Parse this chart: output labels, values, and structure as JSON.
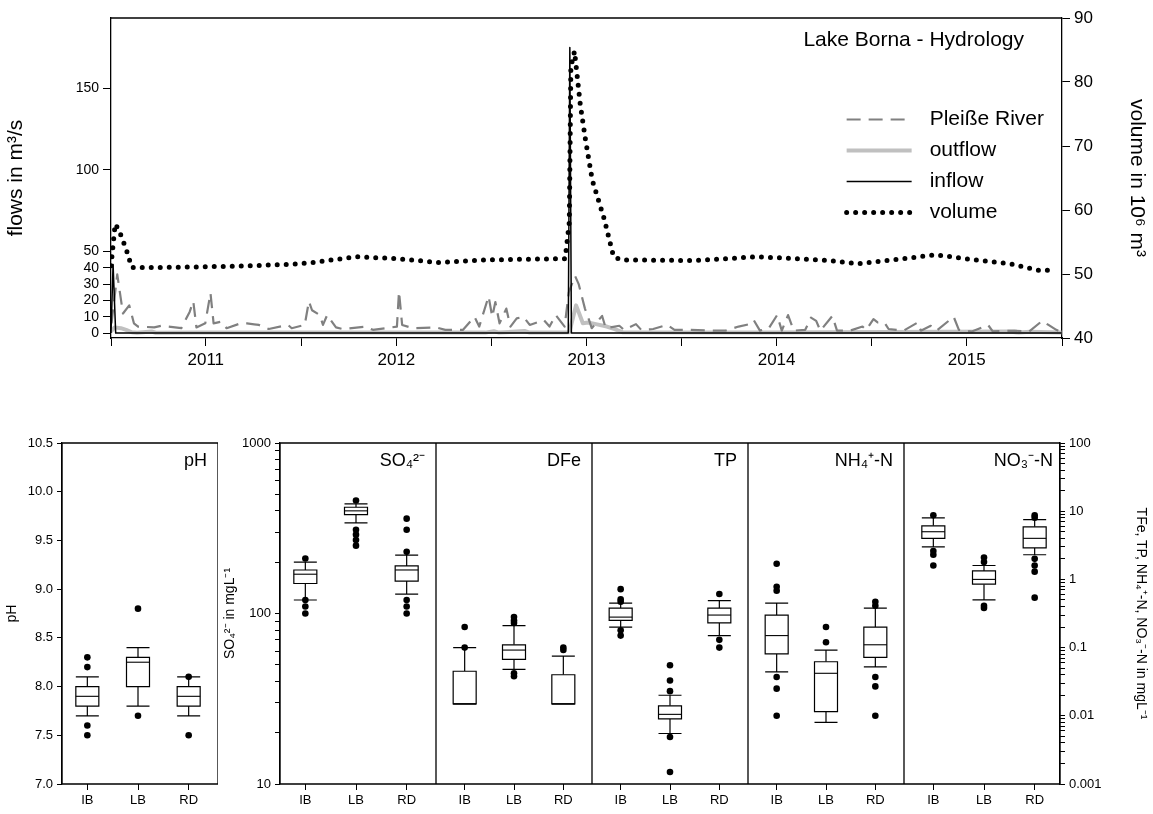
{
  "chart_data": [
    {
      "type": "line",
      "title": "Lake Borna - Hydrology",
      "ylabel": "flows in m³/s",
      "y2label": "volume in 10⁶ m³",
      "legend": "right",
      "marker": "none",
      "xlim": [
        "2011-01-01",
        "2016-01-01"
      ],
      "xticks": [
        {
          "value": "2011-01-01",
          "label": null
        },
        {
          "value": "2011-07-02",
          "label": "2011"
        },
        {
          "value": "2012-01-01",
          "label": null
        },
        {
          "value": "2012-07-02",
          "label": "2012"
        },
        {
          "value": "2013-01-01",
          "label": null
        },
        {
          "value": "2013-07-02",
          "label": "2013"
        },
        {
          "value": "2014-01-01",
          "label": null
        },
        {
          "value": "2014-07-02",
          "label": "2014"
        },
        {
          "value": "2015-01-01",
          "label": null
        },
        {
          "value": "2015-07-02",
          "label": "2015"
        },
        {
          "value": "2016-01-01",
          "label": null
        }
      ],
      "ylim": [
        -3,
        193
      ],
      "yticks": [
        0,
        10,
        20,
        30,
        40,
        50,
        100,
        150
      ],
      "y2lim": [
        40,
        90
      ],
      "y2ticks": [
        40,
        50,
        60,
        70,
        80,
        90
      ],
      "series": [
        {
          "name": "Pleiße River",
          "color": "#808080",
          "line_style": "dashed",
          "x": [
            "2011-01-02",
            "2011-01-13",
            "2011-01-24",
            "2011-02-05",
            "2011-02-14",
            "2011-02-22",
            "2011-03-25",
            "2011-04-08",
            "2011-05-16",
            "2011-06-01",
            "2011-06-08",
            "2011-06-14",
            "2011-07-01",
            "2011-07-11",
            "2011-07-17",
            "2011-08-01",
            "2011-08-11",
            "2011-09-07",
            "2011-09-19",
            "2011-10-12",
            "2011-10-31",
            "2011-12-07",
            "2011-12-14",
            "2012-01-08",
            "2012-01-16",
            "2012-01-22",
            "2012-02-06",
            "2012-02-12",
            "2012-02-20",
            "2012-03-08",
            "2012-03-21",
            "2012-05-04",
            "2012-05-18",
            "2012-06-12",
            "2012-07-03",
            "2012-07-07",
            "2012-07-13",
            "2012-08-03",
            "2012-09-16",
            "2012-10-04",
            "2012-11-07",
            "2012-11-29",
            "2012-12-08",
            "2012-12-26",
            "2013-01-02",
            "2013-01-08",
            "2013-01-16",
            "2013-01-29",
            "2013-02-06",
            "2013-02-18",
            "2013-03-03",
            "2013-03-15",
            "2013-04-11",
            "2013-04-22",
            "2013-05-04",
            "2013-05-21",
            "2013-05-29",
            "2013-06-10",
            "2013-06-17",
            "2013-06-25",
            "2013-06-29",
            "2013-07-07",
            "2013-07-12",
            "2013-08-01",
            "2013-08-08",
            "2013-09-03",
            "2013-09-12",
            "2013-10-05",
            "2013-10-15",
            "2013-11-07",
            "2013-12-04",
            "2013-12-18",
            "2014-01-12",
            "2014-03-03",
            "2014-03-26",
            "2014-04-20",
            "2014-05-11",
            "2014-05-19",
            "2014-05-31",
            "2014-06-17",
            "2014-07-03",
            "2014-07-12",
            "2014-07-24",
            "2014-08-04",
            "2014-08-26",
            "2014-09-06",
            "2014-09-16",
            "2014-09-24",
            "2014-10-17",
            "2014-10-26",
            "2014-11-20",
            "2014-12-14",
            "2014-12-21",
            "2015-01-04",
            "2015-01-12",
            "2015-01-25",
            "2015-02-02",
            "2015-02-17",
            "2015-03-03",
            "2015-03-30",
            "2015-04-05",
            "2015-04-24",
            "2015-05-05",
            "2015-06-07",
            "2015-06-17",
            "2015-07-12",
            "2015-08-12",
            "2015-08-21",
            "2015-10-01",
            "2015-10-30",
            "2015-11-24",
            "2015-12-06",
            "2015-12-21",
            "2015-12-25"
          ],
          "values": [
            6,
            36,
            12,
            17,
            6,
            4,
            3.5,
            4.5,
            3,
            13,
            19.5,
            3.5,
            6,
            24.5,
            6,
            7,
            3,
            6,
            6,
            5,
            2.5,
            5,
            3,
            5,
            19.5,
            14,
            11,
            5,
            11,
            3.5,
            2.5,
            4,
            2,
            3,
            4,
            25.5,
            5,
            3,
            3.5,
            2,
            2,
            10,
            4,
            22.5,
            10,
            19,
            6,
            15,
            4,
            9,
            10,
            5,
            8,
            4,
            11,
            4,
            25,
            35,
            30,
            20,
            15,
            8,
            3,
            10.5,
            3,
            4.5,
            2,
            5.5,
            2,
            2.5,
            5,
            2,
            2,
            1.5,
            1.5,
            4,
            5.5,
            8,
            1.5,
            3,
            11,
            1.5,
            11,
            1.5,
            2,
            9.5,
            7.5,
            1.5,
            10.5,
            1.5,
            1.5,
            4,
            2,
            8.5,
            6.5,
            6.5,
            2.5,
            2,
            1.5,
            6.5,
            1.5,
            4.5,
            1.5,
            10,
            2,
            1,
            5,
            1,
            1.5,
            1,
            7.5,
            5,
            2,
            1.5
          ]
        },
        {
          "name": "outflow",
          "color": "#c0c0c0",
          "line_style": "solid",
          "x": [
            "2011-01-01",
            "2011-01-08",
            "2011-01-20",
            "2011-01-30",
            "2011-02-10",
            "2011-02-20",
            "2011-03-20",
            "2011-03-28",
            "2011-06-15",
            "2012-03-01",
            "2012-12-20",
            "2013-01-05",
            "2013-01-15",
            "2013-03-05",
            "2013-03-15",
            "2013-05-30",
            "2013-06-05",
            "2013-06-12",
            "2013-06-18",
            "2013-06-25",
            "2013-07-05",
            "2013-07-20",
            "2013-08-10",
            "2013-08-25",
            "2013-09-10",
            "2014-06-01",
            "2015-09-20",
            "2015-10-10",
            "2015-11-01",
            "2015-12-31"
          ],
          "values": [
            1,
            3.5,
            3,
            2,
            0.5,
            0.2,
            1,
            0.2,
            0.3,
            0.3,
            0.3,
            1.2,
            0.3,
            1.3,
            0.3,
            0.5,
            8,
            17,
            12,
            6,
            6.5,
            5.5,
            4,
            2.5,
            0.5,
            0.3,
            1,
            0.3,
            0.8,
            0.3
          ]
        },
        {
          "name": "inflow",
          "color": "#000000",
          "line_style": "solid",
          "x": [
            "2011-01-01",
            "2011-01-05",
            "2011-01-10",
            "2013-05-28",
            "2013-05-31",
            "2013-06-03",
            "2015-12-31"
          ],
          "values": [
            0,
            42,
            0,
            0,
            175,
            0,
            0
          ]
        },
        {
          "name": "volume",
          "color": "#000000",
          "line_style": "dotted",
          "axis": "y2",
          "x": [
            "2011-01-01",
            "2011-01-09",
            "2011-01-16",
            "2011-01-30",
            "2011-02-10",
            "2011-03-25",
            "2011-08-18",
            "2011-12-10",
            "2012-01-24",
            "2012-04-17",
            "2012-07-01",
            "2012-09-21",
            "2012-12-19",
            "2013-05-22",
            "2013-05-30",
            "2013-06-02",
            "2013-06-09",
            "2013-06-20",
            "2013-06-30",
            "2013-07-13",
            "2013-08-05",
            "2013-08-23",
            "2013-09-07",
            "2014-01-26",
            "2014-05-28",
            "2014-10-10",
            "2014-12-07",
            "2015-03-04",
            "2015-05-03",
            "2015-07-28",
            "2015-09-24",
            "2015-11-15",
            "2015-12-14"
          ],
          "values": [
            51.3,
            57.8,
            56.9,
            53.9,
            51,
            51,
            51.2,
            51.5,
            51.8,
            52.7,
            52.4,
            51.8,
            52.2,
            52.4,
            58.1,
            82.4,
            84.8,
            76.5,
            71,
            64.7,
            58.6,
            52.7,
            52.2,
            52.1,
            52.7,
            52.1,
            51.6,
            52.4,
            53,
            52.1,
            51.6,
            50.6,
            50.6
          ]
        }
      ]
    },
    {
      "type": "box",
      "title": "pH",
      "ylabel": "pH",
      "categories": [
        "IB",
        "LB",
        "RD"
      ],
      "ylim": [
        7,
        10.5
      ],
      "yticks": [
        {
          "value": 7,
          "label": "7.0"
        },
        7.5,
        {
          "value": 8,
          "label": "8.0"
        },
        8.5,
        {
          "value": 9,
          "label": "9.0"
        },
        9.5,
        {
          "value": 10,
          "label": "10.0"
        },
        10.5
      ],
      "boxes": [
        {
          "low": 7.7,
          "q1": 7.8,
          "median": 7.9,
          "q3": 8.0,
          "high": 8.1,
          "outliers": [
            8.3,
            8.2,
            7.6,
            7.5
          ]
        },
        {
          "low": 7.8,
          "q1": 8.0,
          "median": 8.25,
          "q3": 8.3,
          "high": 8.4,
          "outliers": [
            8.8,
            7.7
          ]
        },
        {
          "low": 7.7,
          "q1": 7.8,
          "median": 7.9,
          "q3": 8.0,
          "high": 8.1,
          "outliers": [
            8.1,
            7.5
          ]
        }
      ]
    },
    {
      "type": "box",
      "title": "SO₄²⁻",
      "ylabel": "SO₄²⁻ in mgL⁻¹",
      "categories": [
        "IB",
        "LB",
        "RD"
      ],
      "log": true,
      "ylim": [
        10,
        1000
      ],
      "yticks": [
        10,
        {
          "value": 20,
          "label": null
        },
        {
          "value": 30,
          "label": null
        },
        {
          "value": 40,
          "label": null
        },
        {
          "value": 50,
          "label": null
        },
        {
          "value": 60,
          "label": null
        },
        {
          "value": 70,
          "label": null
        },
        {
          "value": 80,
          "label": null
        },
        {
          "value": 90,
          "label": null
        },
        100,
        {
          "value": 200,
          "label": null
        },
        {
          "value": 300,
          "label": null
        },
        {
          "value": 400,
          "label": null
        },
        {
          "value": 500,
          "label": null
        },
        {
          "value": 600,
          "label": null
        },
        {
          "value": 700,
          "label": null
        },
        {
          "value": 800,
          "label": null
        },
        {
          "value": 900,
          "label": null
        },
        1000
      ],
      "boxes": [
        {
          "low": 120,
          "q1": 150,
          "median": 170,
          "q3": 180,
          "high": 200,
          "outliers": [
            210,
            120,
            110,
            100
          ]
        },
        {
          "low": 340,
          "q1": 380,
          "median": 400,
          "q3": 420,
          "high": 440,
          "outliers": [
            460,
            310,
            290,
            270,
            250
          ]
        },
        {
          "low": 130,
          "q1": 155,
          "median": 180,
          "q3": 190,
          "high": 220,
          "outliers": [
            360,
            310,
            230,
            120,
            110,
            100
          ]
        }
      ]
    },
    {
      "type": "box",
      "title": "DFe",
      "categories": [
        "IB",
        "LB",
        "RD"
      ],
      "log": true,
      "ylim": [
        0.001,
        100
      ],
      "tick_labels": "x",
      "boxes": [
        {
          "low": 0.015,
          "q1": 0.015,
          "median": 0.015,
          "q3": 0.045,
          "high": 0.1,
          "outliers": [
            0.2,
            0.1
          ]
        },
        {
          "low": 0.048,
          "q1": 0.067,
          "median": 0.092,
          "q3": 0.11,
          "high": 0.21,
          "outliers": [
            0.28,
            0.25,
            0.23,
            0.042,
            0.038
          ]
        },
        {
          "low": 0.015,
          "q1": 0.015,
          "median": 0.015,
          "q3": 0.04,
          "high": 0.075,
          "outliers": [
            0.1,
            0.092
          ]
        }
      ]
    },
    {
      "type": "box",
      "title": "TP",
      "categories": [
        "IB",
        "LB",
        "RD"
      ],
      "log": true,
      "ylim": [
        0.001,
        100
      ],
      "tick_labels": "x",
      "boxes": [
        {
          "low": 0.2,
          "q1": 0.25,
          "median": 0.28,
          "q3": 0.38,
          "high": 0.45,
          "outliers": [
            0.72,
            0.51,
            0.47,
            0.18,
            0.15
          ]
        },
        {
          "low": 0.0055,
          "q1": 0.009,
          "median": 0.0105,
          "q3": 0.014,
          "high": 0.02,
          "outliers": [
            0.055,
            0.033,
            0.023,
            0.0049,
            0.0015
          ]
        },
        {
          "low": 0.15,
          "q1": 0.23,
          "median": 0.3,
          "q3": 0.38,
          "high": 0.49,
          "outliers": [
            0.61,
            0.13,
            0.1
          ]
        }
      ]
    },
    {
      "type": "box",
      "title": "NH₄⁺-N",
      "categories": [
        "IB",
        "LB",
        "RD"
      ],
      "log": true,
      "ylim": [
        0.001,
        100
      ],
      "tick_labels": "x",
      "boxes": [
        {
          "low": 0.044,
          "q1": 0.081,
          "median": 0.15,
          "q3": 0.3,
          "high": 0.45,
          "outliers": [
            1.7,
            0.78,
            0.68,
            0.037,
            0.025,
            0.01
          ]
        },
        {
          "low": 0.008,
          "q1": 0.0115,
          "median": 0.042,
          "q3": 0.062,
          "high": 0.092,
          "outliers": [
            0.2,
            0.12
          ]
        },
        {
          "low": 0.052,
          "q1": 0.072,
          "median": 0.11,
          "q3": 0.2,
          "high": 0.38,
          "outliers": [
            0.47,
            0.41,
            0.037,
            0.027,
            0.01
          ]
        }
      ]
    },
    {
      "type": "box",
      "title": "NO₃⁻-N",
      "ylabel": "TFe, TP, NH₄⁺-N, NO₃⁻-N in mgL⁻¹",
      "categories": [
        "IB",
        "LB",
        "RD"
      ],
      "log": true,
      "ylim": [
        0.001,
        100
      ],
      "yticks": [
        0.001,
        {
          "value": 0.002,
          "label": null
        },
        {
          "value": 0.003,
          "label": null
        },
        {
          "value": 0.004,
          "label": null
        },
        {
          "value": 0.005,
          "label": null
        },
        {
          "value": 0.006,
          "label": null
        },
        {
          "value": 0.007,
          "label": null
        },
        {
          "value": 0.008,
          "label": null
        },
        {
          "value": 0.009,
          "label": null
        },
        0.01,
        {
          "value": 0.02,
          "label": null
        },
        {
          "value": 0.03,
          "label": null
        },
        {
          "value": 0.04,
          "label": null
        },
        {
          "value": 0.05,
          "label": null
        },
        {
          "value": 0.06,
          "label": null
        },
        {
          "value": 0.07,
          "label": null
        },
        {
          "value": 0.08,
          "label": null
        },
        {
          "value": 0.09,
          "label": null
        },
        0.1,
        {
          "value": 0.2,
          "label": null
        },
        {
          "value": 0.3,
          "label": null
        },
        {
          "value": 0.4,
          "label": null
        },
        {
          "value": 0.5,
          "label": null
        },
        {
          "value": 0.6,
          "label": null
        },
        {
          "value": 0.7,
          "label": null
        },
        {
          "value": 0.8,
          "label": null
        },
        {
          "value": 0.9,
          "label": null
        },
        1,
        {
          "value": 2,
          "label": null
        },
        {
          "value": 3,
          "label": null
        },
        {
          "value": 4,
          "label": null
        },
        {
          "value": 5,
          "label": null
        },
        {
          "value": 6,
          "label": null
        },
        {
          "value": 7,
          "label": null
        },
        {
          "value": 8,
          "label": null
        },
        {
          "value": 9,
          "label": null
        },
        10,
        {
          "value": 20,
          "label": null
        },
        {
          "value": 30,
          "label": null
        },
        {
          "value": 40,
          "label": null
        },
        {
          "value": 50,
          "label": null
        },
        {
          "value": 60,
          "label": null
        },
        {
          "value": 70,
          "label": null
        },
        {
          "value": 80,
          "label": null
        },
        {
          "value": 90,
          "label": null
        },
        100
      ],
      "boxes": [
        {
          "low": 3.0,
          "q1": 4.0,
          "median": 5.0,
          "q3": 6.1,
          "high": 8.0,
          "outliers": [
            8.7,
            2.6,
            2.3,
            1.6
          ]
        },
        {
          "low": 0.5,
          "q1": 0.85,
          "median": 1.0,
          "q3": 1.33,
          "high": 1.6,
          "outliers": [
            2.1,
            1.8,
            0.41,
            0.38
          ]
        },
        {
          "low": 2.3,
          "q1": 2.9,
          "median": 4.0,
          "q3": 5.9,
          "high": 7.5,
          "outliers": [
            8.7,
            8.0,
            2.0,
            1.6,
            1.3,
            0.54
          ]
        }
      ]
    }
  ]
}
